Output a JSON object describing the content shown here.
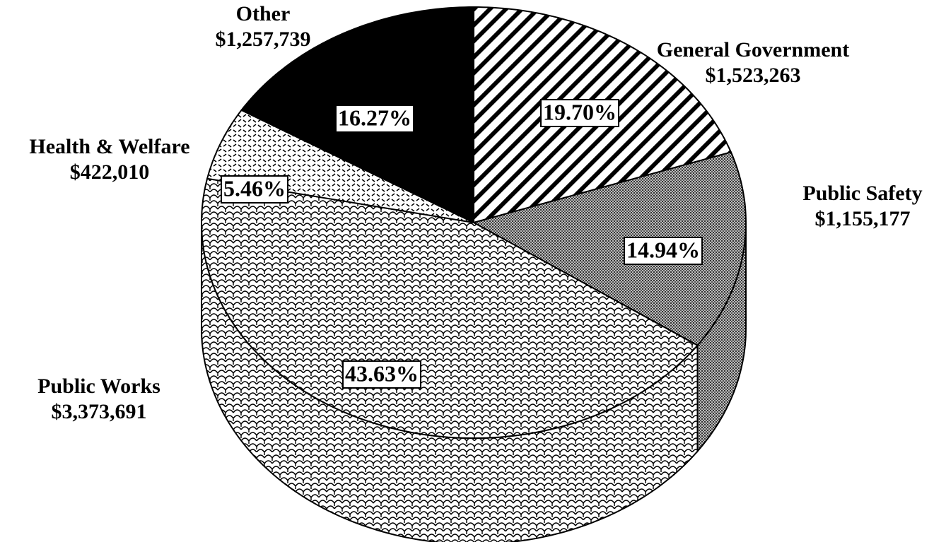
{
  "chart_data": {
    "type": "pie",
    "categories": [
      "General Government",
      "Public Safety",
      "Public Works",
      "Health & Welfare",
      "Other"
    ],
    "values": [
      1523263,
      1155177,
      3373691,
      422010,
      1257739
    ],
    "value_labels": [
      "$1,523,263",
      "$1,155,177",
      "$3,373,691",
      "$422,010",
      "$1,257,739"
    ],
    "percent_values": [
      19.7,
      14.94,
      43.63,
      5.46,
      16.27
    ],
    "percent_labels": [
      "19.70%",
      "14.94%",
      "43.63%",
      "5.46%",
      "16.27%"
    ]
  }
}
